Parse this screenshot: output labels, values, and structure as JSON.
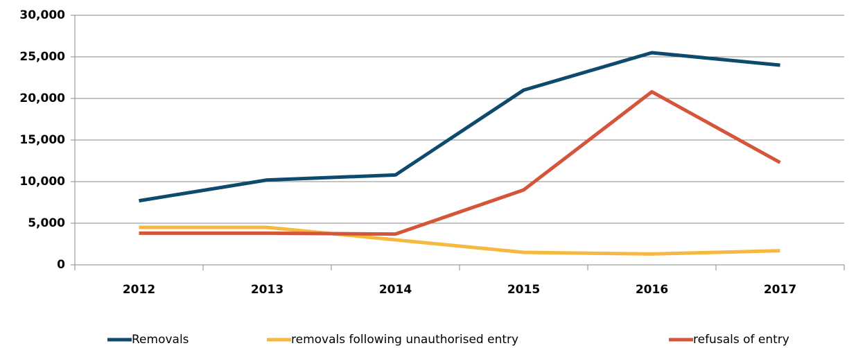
{
  "chart_data": {
    "type": "line",
    "categories": [
      "2012",
      "2013",
      "2014",
      "2015",
      "2016",
      "2017"
    ],
    "series": [
      {
        "name": "Removals",
        "color": "#0e4a6e",
        "values": [
          7700,
          10200,
          10800,
          21000,
          25500,
          24000
        ]
      },
      {
        "name": "removals following unauthorised entry",
        "color": "#f5b942",
        "values": [
          4500,
          4500,
          3000,
          1500,
          1300,
          1700
        ]
      },
      {
        "name": "refusals of entry",
        "color": "#d4553a",
        "values": [
          3800,
          3800,
          3700,
          9000,
          20800,
          12300
        ]
      }
    ],
    "ylim": [
      0,
      30000
    ],
    "yticks": [
      0,
      {
        "value": 5000,
        "label": "5,000"
      },
      {
        "value": 10000,
        "label": "10,000"
      },
      {
        "value": 15000,
        "label": "15,000"
      },
      {
        "value": 20000,
        "label": "20,000"
      },
      {
        "value": 25000,
        "label": "25,000"
      },
      {
        "value": 30000,
        "label": "30,000"
      }
    ],
    "grid": true,
    "legend": "bottom"
  }
}
